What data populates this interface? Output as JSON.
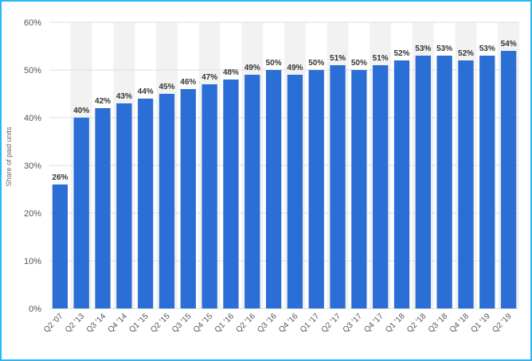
{
  "colors": {
    "bar": "#2b6fd6",
    "band": "#f2f2f2",
    "grid": "#dddddd",
    "frame": "#29b6f6"
  },
  "chart_data": {
    "type": "bar",
    "title": "",
    "xlabel": "",
    "ylabel": "Share of paid units",
    "ylim": [
      0,
      60
    ],
    "yticks": [
      0,
      10,
      20,
      30,
      40,
      50,
      60
    ],
    "ytick_labels": [
      "0%",
      "10%",
      "20%",
      "30%",
      "40%",
      "50%",
      "60%"
    ],
    "grid": true,
    "categories": [
      "Q2 '07",
      "Q2 '13",
      "Q3 '14",
      "Q4 '14",
      "Q1 '15",
      "Q2 '15",
      "Q3 '15",
      "Q4 '15",
      "Q1 '16",
      "Q2 '16",
      "Q3 '16",
      "Q4 '16",
      "Q1 '17",
      "Q2 '17",
      "Q3 '17",
      "Q4 '17",
      "Q1 '18",
      "Q2 '18",
      "Q3 '18",
      "Q4 '18",
      "Q1 '19",
      "Q2 '19"
    ],
    "values": [
      26,
      40,
      42,
      43,
      44,
      45,
      46,
      47,
      48,
      49,
      50,
      49,
      50,
      51,
      50,
      51,
      52,
      53,
      53,
      52,
      53,
      54
    ],
    "value_labels": [
      "26%",
      "40%",
      "42%",
      "43%",
      "44%",
      "45%",
      "46%",
      "47%",
      "48%",
      "49%",
      "50%",
      "49%",
      "50%",
      "51%",
      "50%",
      "51%",
      "52%",
      "53%",
      "53%",
      "52%",
      "53%",
      "54%"
    ]
  }
}
